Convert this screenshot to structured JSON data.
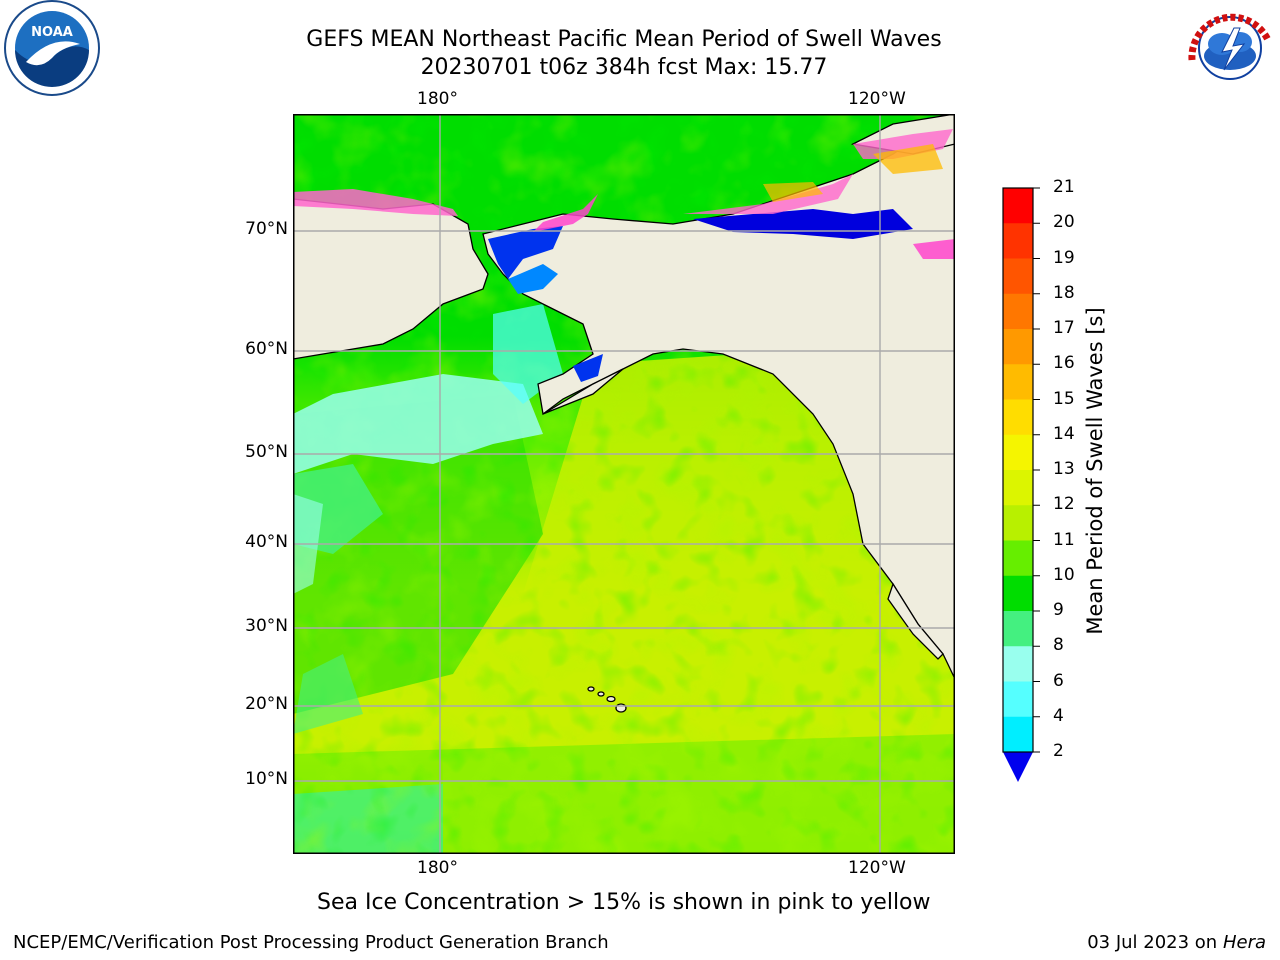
{
  "header": {
    "title_line1": "GEFS MEAN Northeast Pacific Mean Period of Swell Waves",
    "title_line2": "20230701 t06z 384h fcst   Max: 15.77"
  },
  "logos": {
    "left": {
      "text": "NOAA",
      "icon": "noaa-logo"
    },
    "right": {
      "text": "NATIONAL WEATHER SERVICE",
      "icon": "nws-logo"
    }
  },
  "map": {
    "lon_ticks_top": [
      "180°",
      "120°W"
    ],
    "lon_ticks_bottom": [
      "180°",
      "120°W"
    ],
    "lat_ticks": [
      "70°N",
      "60°N",
      "50°N",
      "40°N",
      "30°N",
      "20°N",
      "10°N"
    ],
    "colors": {
      "land": "#efedde",
      "coast": "#000000",
      "grid": "#aaaaaa"
    }
  },
  "colorbar": {
    "title": "Mean Period of Swell Waves [s]",
    "labels": [
      "21",
      "20",
      "19",
      "18",
      "17",
      "16",
      "15",
      "14",
      "13",
      "12",
      "11",
      "10",
      "9",
      "8",
      "6",
      "4",
      "2"
    ],
    "colors": [
      "#ff0000",
      "#ff3300",
      "#ff5500",
      "#ff7700",
      "#ff9900",
      "#ffbb00",
      "#ffdd00",
      "#f5f500",
      "#dcf500",
      "#b8f000",
      "#66ee00",
      "#00dd00",
      "#44f080",
      "#99ffee",
      "#55ffff",
      "#00eeff",
      "#0088ff",
      "#0033ee"
    ],
    "extend_color": "#0000ee"
  },
  "notes": {
    "ice": "Sea Ice Concentration > 15% is shown in pink to yellow"
  },
  "footer": {
    "left": "NCEP/EMC/Verification Post Processing Product Generation Branch",
    "right_prefix": "03 Jul 2023 on ",
    "right_host": "Hera"
  }
}
